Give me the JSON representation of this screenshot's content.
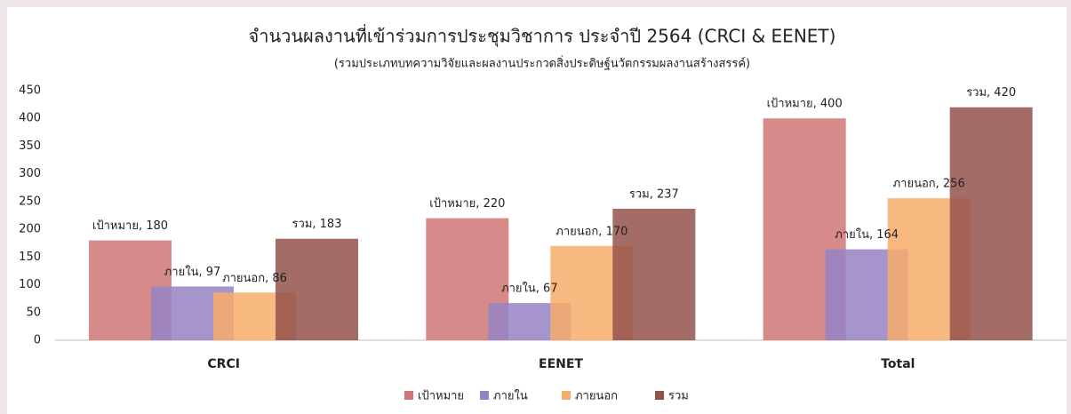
{
  "chart_data": {
    "type": "bar",
    "title": "จำนวนผลงานที่เข้าร่วมการประชุมวิชาการ ประจำปี 2564 (CRCI & EENET)",
    "subtitle": "(รวมประเภทบทความวิจัยและผลงานประกวดสิ่งประดิษฐ์นวัตกรรมผลงานสร้างสรรค์)",
    "categories": [
      "CRCI",
      "EENET",
      "Total"
    ],
    "series": [
      {
        "name": "เป้าหมาย",
        "color": "#d07575",
        "values": [
          180,
          220,
          400
        ],
        "value_labels": [
          "เป้าหมาย, 180",
          "เป้าหมาย, 220",
          "เป้าหมาย, 400"
        ]
      },
      {
        "name": "ภายใน",
        "color": "#9682c4",
        "values": [
          97,
          67,
          164
        ],
        "value_labels": [
          "ภายใน, 97",
          "ภายใน, 67",
          "ภายใน, 164"
        ]
      },
      {
        "name": "ภายนอก",
        "color": "#f7ad6b",
        "values": [
          86,
          170,
          256
        ],
        "value_labels": [
          "ภายนอก, 86",
          "ภายนอก, 170",
          "ภายนอก, 256"
        ]
      },
      {
        "name": "รวม",
        "color": "#94524b",
        "values": [
          183,
          237,
          420
        ],
        "value_labels": [
          "รวม, 183",
          "รวม, 237",
          "รวม, 420"
        ]
      }
    ],
    "ylim": [
      0,
      450
    ],
    "yticks": [
      0,
      50,
      100,
      150,
      200,
      250,
      300,
      350,
      400,
      450
    ],
    "grid": false,
    "legend": "bottom"
  }
}
